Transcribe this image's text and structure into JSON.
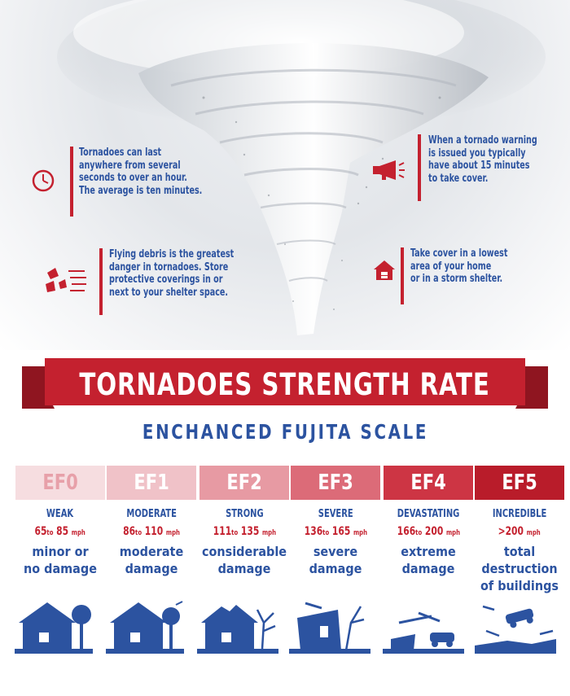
{
  "callouts": [
    {
      "icon": "clock-icon",
      "text": "Tornadoes can last\nanywhere from several\nseconds to over an hour.\nThe average is ten minutes."
    },
    {
      "icon": "megaphone-icon",
      "text": "When a tornado warning\nis issued you typically\nhave about 15 minutes\nto take cover."
    },
    {
      "icon": "debris-icon",
      "text": "Flying debris is the greatest\ndanger in tornadoes. Store\nprotective coverings in or\nnext to your shelter space."
    },
    {
      "icon": "house-icon",
      "text": "Take cover in a lowest\narea of your home\nor in a storm shelter."
    }
  ],
  "title": "TORNADOES STRENGTH RATE",
  "subtitle": "ENCHANCED FUJITA SCALE",
  "scale": [
    {
      "level": "EF0",
      "category": "WEAK",
      "speed_low": "65",
      "speed_to": "to",
      "speed_high": "85",
      "unit": "mph",
      "damage": "minor or\nno damage",
      "color": "#f6dde0",
      "text_color": "#e7a0a9"
    },
    {
      "level": "EF1",
      "category": "MODERATE",
      "speed_low": "86",
      "speed_to": "to",
      "speed_high": "110",
      "unit": "mph",
      "damage": "moderate\ndamage",
      "color": "#f0c2c8",
      "text_color": "#ffffff"
    },
    {
      "level": "EF2",
      "category": "STRONG",
      "speed_low": "111",
      "speed_to": "to",
      "speed_high": "135",
      "unit": "mph",
      "damage": "considerable\ndamage",
      "color": "#e79aa3",
      "text_color": "#ffffff"
    },
    {
      "level": "EF3",
      "category": "SEVERE",
      "speed_low": "136",
      "speed_to": "to",
      "speed_high": "165",
      "unit": "mph",
      "damage": "severe\ndamage",
      "color": "#dc6b78",
      "text_color": "#ffffff"
    },
    {
      "level": "EF4",
      "category": "DEVASTATING",
      "speed_low": "166",
      "speed_to": "to",
      "speed_high": "200",
      "unit": "mph",
      "damage": "extreme\ndamage",
      "color": "#cd3544",
      "text_color": "#ffffff"
    },
    {
      "level": "EF5",
      "category": "INCREDIBLE",
      "speed_low": ">200",
      "speed_to": "",
      "speed_high": "",
      "unit": "mph",
      "damage": "total destruction\nof buildings",
      "color": "#b91c2a",
      "text_color": "#ffffff"
    }
  ],
  "colors": {
    "red": "#c4212f",
    "blue": "#2c53a0"
  }
}
